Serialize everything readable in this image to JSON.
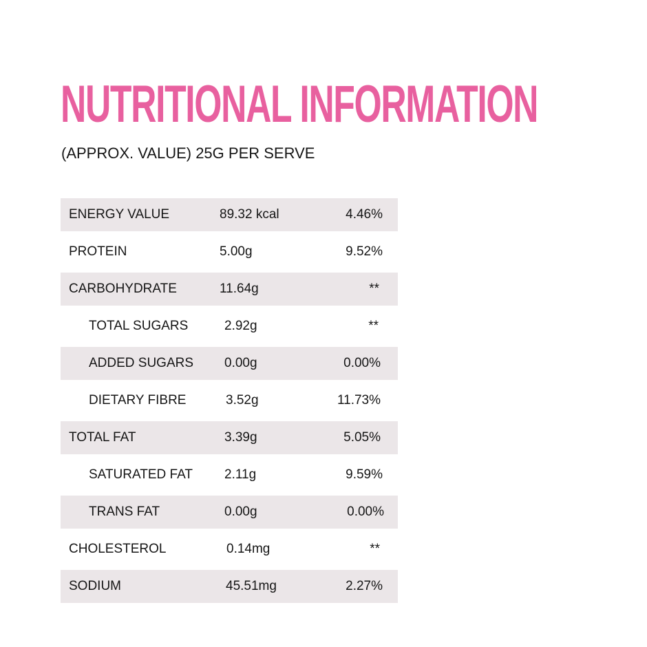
{
  "title": "NUTRITIONAL INFORMATION",
  "subtitle": "(APPROX. VALUE) 25G PER SERVE",
  "colors": {
    "title": "#e8609f",
    "row_shade": "#ebe6e8",
    "text": "#151515"
  },
  "rows": [
    {
      "name": "ENERGY VALUE",
      "amount": "89.32 kcal",
      "percent": "4.46%"
    },
    {
      "name": "PROTEIN",
      "amount": "5.00g",
      "percent": "9.52%"
    },
    {
      "name": "CARBOHYDRATE",
      "amount": "11.64g",
      "percent": "**"
    },
    {
      "name": "TOTAL SUGARS",
      "amount": "2.92g",
      "percent": "**"
    },
    {
      "name": "ADDED SUGARS",
      "amount": "0.00g",
      "percent": "0.00%"
    },
    {
      "name": "DIETARY FIBRE",
      "amount": "3.52g",
      "percent": "11.73%"
    },
    {
      "name": "TOTAL FAT",
      "amount": "3.39g",
      "percent": "5.05%"
    },
    {
      "name": "SATURATED FAT",
      "amount": "2.11g",
      "percent": "9.59%"
    },
    {
      "name": "TRANS FAT",
      "amount": "0.00g",
      "percent": "0.00%"
    },
    {
      "name": "CHOLESTEROL",
      "amount": "0.14mg",
      "percent": "**"
    },
    {
      "name": "SODIUM",
      "amount": "45.51mg",
      "percent": "2.27%"
    }
  ]
}
